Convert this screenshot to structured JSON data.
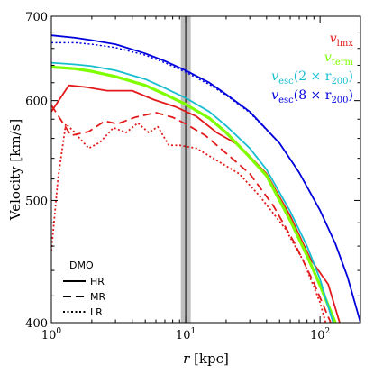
{
  "chart_data": {
    "type": "line",
    "title": "",
    "xlabel": "r [kpc]",
    "ylabel": "Velocity [km/s]",
    "xscale": "log",
    "yscale": "log",
    "xlim": [
      1,
      200
    ],
    "ylim": [
      400,
      700
    ],
    "x_ticks": [
      {
        "value": 1,
        "base": "10",
        "exp": "0"
      },
      {
        "value": 10,
        "base": "10",
        "exp": "1"
      },
      {
        "value": 100,
        "base": "10",
        "exp": "2"
      }
    ],
    "y_ticks": [
      {
        "value": 400,
        "label": "400"
      },
      {
        "value": 500,
        "label": "500"
      },
      {
        "value": 600,
        "label": "600"
      },
      {
        "value": 700,
        "label": "700"
      }
    ],
    "vertical_band": {
      "x_range": [
        9.2,
        10.9
      ],
      "x_line": 10.0,
      "color": "#bfbfbf"
    },
    "series": [
      {
        "legend_text": "v_lmx",
        "label_main": "v",
        "label_sub": "lmx",
        "color": "#e31a1c",
        "width": 1.8,
        "style": "solid",
        "x": [
          1,
          1.35,
          1.8,
          2.6,
          4,
          5.8,
          8.5,
          12,
          17,
          25,
          40,
          60,
          85,
          115,
          140
        ],
        "y": [
          588,
          617,
          615,
          611,
          611,
          601,
          593,
          583,
          566,
          553,
          525,
          486,
          449,
          429,
          400
        ]
      },
      {
        "legend_text": "v_lmx",
        "label_main": "v",
        "label_sub": "lmx",
        "color": "#e31a1c",
        "width": 1.8,
        "style": "dashed",
        "x": [
          1,
          1.4,
          1.9,
          2.5,
          3.1,
          4.2,
          6,
          8,
          10,
          14,
          20,
          30,
          45,
          65,
          90,
          120
        ],
        "y": [
          595,
          563,
          567,
          578,
          575,
          582,
          587,
          582,
          575,
          563,
          545,
          525,
          495,
          462,
          430,
          400
        ]
      },
      {
        "legend_text": "v_lmx",
        "label_main": "v",
        "label_sub": "lmx",
        "color": "#e31a1c",
        "width": 1.8,
        "style": "dotted",
        "x": [
          1,
          1.12,
          1.28,
          1.45,
          1.6,
          1.9,
          2.3,
          2.9,
          3.6,
          4.4,
          5.3,
          6.2,
          7.5,
          9,
          12,
          17,
          25,
          35,
          55,
          75,
          100,
          110
        ],
        "y": [
          456,
          520,
          575,
          568,
          561,
          550,
          556,
          571,
          566,
          576,
          566,
          572,
          553,
          553,
          550,
          538,
          525,
          505,
          475,
          448,
          415,
          400
        ]
      },
      {
        "legend_text": "v_term",
        "label_main": "v",
        "label_sub": "term",
        "color": "#7fff00",
        "width": 3.2,
        "style": "solid",
        "x": [
          1,
          1.5,
          2,
          3,
          5,
          7,
          10,
          15,
          20,
          30,
          40,
          60,
          80,
          100,
          130
        ],
        "y": [
          638,
          636,
          633,
          627,
          617,
          607,
          596,
          581,
          566,
          541,
          523,
          482,
          452,
          428,
          400
        ]
      },
      {
        "legend_text": "v_esc(2 x r_200)",
        "label_main": "v",
        "label_sub": "esc",
        "label_tail": "(2 × r",
        "label_tail_sub": "200",
        "label_close": ")",
        "color": "#17becf",
        "width": 1.8,
        "style": "solid",
        "x": [
          1,
          1.5,
          2,
          3,
          5,
          7,
          10,
          15,
          20,
          30,
          40,
          60,
          80,
          100,
          125
        ],
        "y": [
          643,
          641,
          639,
          634,
          624,
          614,
          603,
          588,
          573,
          550,
          529,
          490,
          460,
          433,
          400
        ]
      },
      {
        "legend_text": "v_esc(8 x r_200)",
        "label_main": "v",
        "label_sub": "esc",
        "label_tail": "(8 × r",
        "label_tail_sub": "200",
        "label_close": ")",
        "color": "#0000dd",
        "width": 1.8,
        "style": "solid",
        "x": [
          1,
          1.5,
          2,
          3,
          5,
          7,
          10,
          15,
          20,
          30,
          50,
          70,
          100,
          130,
          160,
          200
        ],
        "y": [
          676,
          673,
          670,
          665,
          654,
          645,
          634,
          620,
          607,
          588,
          555,
          526,
          491,
          462,
          435,
          400
        ]
      },
      {
        "legend_text": "v_esc(8 x r_200)",
        "label_main": "v",
        "label_sub": "esc",
        "color": "#0000dd",
        "width": 1.5,
        "style": "dotted",
        "x": [
          1,
          1.5,
          2,
          3,
          5,
          7,
          10,
          15,
          20,
          30,
          50
        ],
        "y": [
          667,
          667,
          665,
          661,
          652,
          643,
          632,
          618,
          606,
          587,
          555
        ]
      }
    ],
    "legend_right_order": [
      0,
      3,
      4,
      5
    ],
    "legend_left": {
      "title": "DMO",
      "position": "bottom-left",
      "items": [
        {
          "label": "HR",
          "style": "solid"
        },
        {
          "label": "MR",
          "style": "dashed"
        },
        {
          "label": "LR",
          "style": "dotted"
        }
      ]
    },
    "legend_right_position": "top-right",
    "grid": false
  }
}
